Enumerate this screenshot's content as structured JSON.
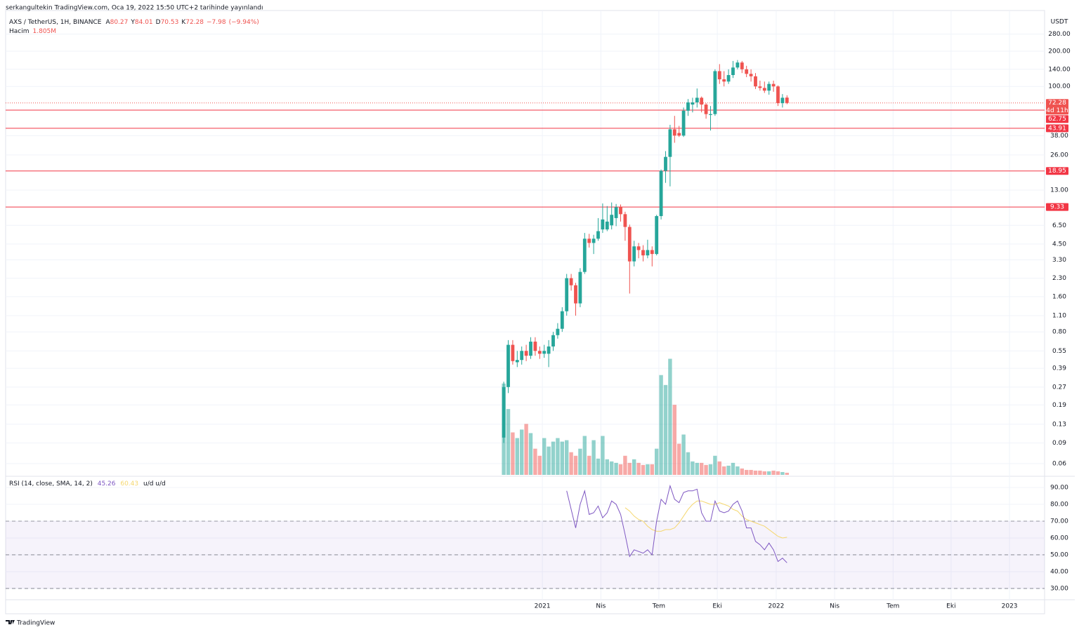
{
  "chart_data": {
    "type": "candlestick",
    "publisher": "serkangultekin TradingView.com, Oca 19, 2022 15:50 UTC+2 tarihinde yayınlandı",
    "symbol": "AXS / TetherUS, 1H, BINANCE",
    "ohlc_letters": [
      "A",
      "Y",
      "D",
      "K"
    ],
    "change": {
      "value": -7.98,
      "label": "−7.98"
    },
    "change_pct": {
      "value": -9.94,
      "label": "(−9.94%)"
    },
    "currency": "USDT",
    "countdown": "4d 11h",
    "xlim": [
      -110.8,
      120.3
    ],
    "xticks": [
      {
        "value": 8.6,
        "label": "2021"
      },
      {
        "value": 21.6,
        "label": "Nis"
      },
      {
        "value": 34.5,
        "label": "Tem"
      },
      {
        "value": 47.5,
        "label": "Eki"
      },
      {
        "value": 60.6,
        "label": "2022"
      },
      {
        "value": 73.6,
        "label": "Nis"
      },
      {
        "value": 86.6,
        "label": "Tem"
      },
      {
        "value": 99.5,
        "label": "Eki"
      },
      {
        "value": 112.5,
        "label": "2023"
      }
    ],
    "ylim": [
      0.048,
      445
    ],
    "log_scale": true,
    "grid": true,
    "yticks": [
      {
        "value": 280,
        "label": "280.00"
      },
      {
        "value": 200,
        "label": "200.00"
      },
      {
        "value": 140,
        "label": "140.00"
      },
      {
        "value": 100,
        "label": "100.00"
      },
      {
        "value": 38,
        "label": "38.00"
      },
      {
        "value": 26,
        "label": "26.00"
      },
      {
        "value": 13,
        "label": "13.00"
      },
      {
        "value": 6.5,
        "label": "6.50"
      },
      {
        "value": 4.5,
        "label": "4.50"
      },
      {
        "value": 3.3,
        "label": "3.30"
      },
      {
        "value": 2.3,
        "label": "2.30"
      },
      {
        "value": 1.6,
        "label": "1.60"
      },
      {
        "value": 1.1,
        "label": "1.10"
      },
      {
        "value": 0.8,
        "label": "0.80"
      },
      {
        "value": 0.55,
        "label": "0.55"
      },
      {
        "value": 0.39,
        "label": "0.39"
      },
      {
        "value": 0.27,
        "label": "0.27"
      },
      {
        "value": 0.19,
        "label": "0.19"
      },
      {
        "value": 0.13,
        "label": "0.13"
      },
      {
        "value": 0.09,
        "label": "0.09"
      },
      {
        "value": 0.06,
        "label": "0.06"
      }
    ],
    "open": [
      0.1,
      0.27,
      0.62,
      0.44,
      0.46,
      0.55,
      0.5,
      0.66,
      0.55,
      0.52,
      0.52,
      0.6,
      0.75,
      0.85,
      1.2,
      2.3,
      2.0,
      1.4,
      2.6,
      5.0,
      4.6,
      5.0,
      6.0,
      6.0,
      6.5,
      7.5,
      9.3,
      8.1,
      6.3,
      3.2,
      4.3,
      4.0,
      3.6,
      4.0,
      3.7,
      7.8,
      19,
      25,
      43,
      40,
      38,
      62,
      70,
      73,
      80,
      70,
      57,
      58,
      135,
      115,
      110,
      125,
      145,
      160,
      140,
      128,
      122,
      100,
      97,
      92,
      105,
      100,
      72,
      80.27
    ],
    "high": [
      0.3,
      0.68,
      0.68,
      0.55,
      0.6,
      0.62,
      0.72,
      0.72,
      0.6,
      0.62,
      0.68,
      0.8,
      0.95,
      1.3,
      2.5,
      2.5,
      2.1,
      2.8,
      5.6,
      5.5,
      5.4,
      7.5,
      10,
      9.5,
      10.2,
      9.9,
      9.8,
      8.5,
      6.6,
      4.8,
      4.6,
      4.4,
      4.9,
      4.3,
      8.0,
      19.5,
      28,
      47,
      56,
      46,
      66,
      78,
      80,
      96,
      82,
      72,
      68,
      140,
      155,
      135,
      140,
      165,
      168,
      165,
      150,
      140,
      130,
      112,
      110,
      110,
      112,
      102,
      86,
      84.01
    ],
    "low": [
      0.09,
      0.24,
      0.42,
      0.4,
      0.42,
      0.45,
      0.47,
      0.5,
      0.47,
      0.48,
      0.4,
      0.55,
      0.7,
      0.8,
      1.1,
      1.8,
      1.1,
      1.3,
      2.5,
      4.2,
      3.7,
      4.8,
      5.6,
      5.8,
      6.0,
      6.4,
      7.0,
      4.8,
      1.7,
      2.9,
      3.4,
      3.2,
      3.4,
      2.9,
      3.6,
      7.3,
      15,
      14,
      33,
      37,
      37,
      56,
      60,
      66,
      60,
      53,
      42,
      56,
      105,
      100,
      105,
      118,
      140,
      130,
      120,
      110,
      95,
      92,
      88,
      85,
      90,
      68,
      66,
      70.53
    ],
    "close": [
      0.27,
      0.62,
      0.45,
      0.46,
      0.55,
      0.5,
      0.66,
      0.55,
      0.52,
      0.55,
      0.6,
      0.75,
      0.85,
      1.2,
      2.3,
      2.0,
      1.4,
      2.6,
      5.0,
      4.6,
      5.0,
      5.8,
      7.3,
      7.0,
      8.0,
      9.3,
      8.1,
      6.3,
      3.2,
      4.3,
      4.0,
      3.6,
      4.0,
      3.7,
      7.8,
      19,
      25,
      43,
      38,
      38,
      62,
      73,
      73,
      80,
      70,
      58,
      58,
      135,
      115,
      110,
      125,
      145,
      160,
      140,
      128,
      122,
      100,
      97,
      92,
      105,
      100,
      72,
      80,
      72.28
    ],
    "up_color": "#26a69a",
    "down_color": "#ef5350",
    "levels": [
      62.75,
      43.91,
      18.95,
      9.33
    ],
    "level_color": "#f23645",
    "volume": {
      "name": "Hacim",
      "last_label": "1.805M",
      "values": [
        77.4,
        55.8,
        36,
        31.2,
        38.4,
        43.2,
        35.4,
        22.2,
        16.2,
        31.2,
        24,
        28.2,
        31.2,
        28.2,
        29.4,
        19.2,
        16.2,
        22.2,
        33,
        16.2,
        29.4,
        13.8,
        33,
        13.2,
        11.4,
        10.2,
        9,
        16.2,
        10.2,
        13.2,
        10.2,
        8.4,
        9,
        9,
        22.2,
        84.6,
        76.2,
        98.4,
        59.4,
        26.4,
        34.2,
        19.2,
        11.4,
        10.2,
        10.2,
        8.4,
        9,
        16.2,
        11.4,
        7.2,
        7.8,
        10.2,
        7.2,
        5.4,
        4.2,
        4.2,
        3.6,
        3.6,
        3,
        3,
        3.6,
        3,
        2.4,
        1.805
      ]
    },
    "rsi": {
      "title": "RSI (14, close, SMA, 14, 2)",
      "suffix": "u/d  u/d",
      "ylim": [
        23.3,
        96.25
      ],
      "yticks": [
        {
          "value": 90,
          "label": "90.00"
        },
        {
          "value": 80,
          "label": "80.00"
        },
        {
          "value": 70,
          "label": "70.00"
        },
        {
          "value": 60,
          "label": "60.00"
        },
        {
          "value": 50,
          "label": "50.00"
        },
        {
          "value": 40,
          "label": "40.00"
        },
        {
          "value": 30,
          "label": "30.00"
        }
      ],
      "bands": [
        70,
        50,
        30
      ],
      "color": "#7e57c2",
      "sma_color": "#f5d76e",
      "values": [
        null,
        null,
        null,
        null,
        null,
        null,
        null,
        null,
        null,
        null,
        null,
        null,
        null,
        null,
        88,
        77,
        66,
        80,
        88,
        74,
        75,
        79,
        72,
        75,
        82,
        80,
        74,
        62,
        49,
        53,
        52,
        51,
        53,
        50,
        70,
        83,
        80,
        91,
        83,
        81,
        87,
        88,
        88,
        89,
        75,
        70,
        70,
        82,
        76,
        75,
        76,
        80,
        82,
        76,
        66,
        66,
        58,
        56,
        53,
        57,
        53,
        46,
        48,
        45.26
      ],
      "sma": [
        null,
        null,
        null,
        null,
        null,
        null,
        null,
        null,
        null,
        null,
        null,
        null,
        null,
        null,
        null,
        null,
        null,
        null,
        null,
        null,
        null,
        null,
        null,
        null,
        null,
        null,
        null,
        78,
        76,
        73,
        71,
        70,
        67,
        65,
        64,
        64,
        65,
        65,
        66,
        69,
        73,
        77,
        80,
        82,
        82,
        81,
        80,
        80,
        81,
        80,
        79,
        77,
        76,
        73,
        71,
        70,
        69,
        68,
        67,
        65,
        63,
        61,
        60,
        60.43
      ]
    },
    "brand": "TradingView"
  }
}
